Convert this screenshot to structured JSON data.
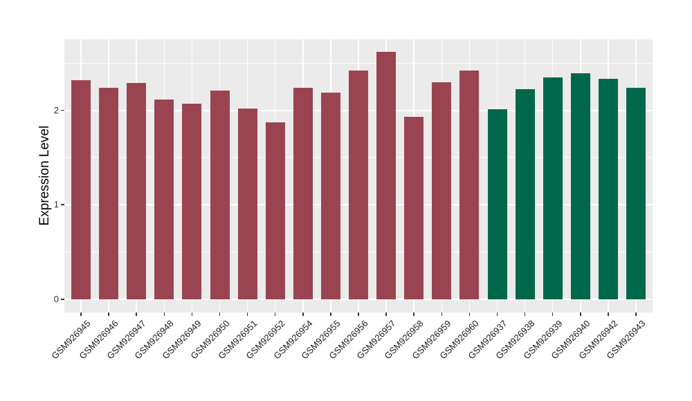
{
  "chart_data": {
    "type": "bar",
    "title": "",
    "xlabel": "",
    "ylabel": "Expression Level",
    "categories": [
      "GSM926945",
      "GSM926946",
      "GSM926947",
      "GSM926948",
      "GSM926949",
      "GSM926950",
      "GSM926951",
      "GSM926952",
      "GSM926954",
      "GSM926955",
      "GSM926956",
      "GSM926957",
      "GSM926958",
      "GSM926959",
      "GSM926960",
      "GSM926937",
      "GSM926938",
      "GSM926939",
      "GSM926940",
      "GSM926942",
      "GSM926943"
    ],
    "values": [
      2.32,
      2.24,
      2.29,
      2.11,
      2.07,
      2.21,
      2.02,
      1.87,
      2.24,
      2.19,
      2.42,
      2.62,
      1.93,
      2.3,
      2.42,
      2.01,
      2.22,
      2.35,
      2.39,
      2.33,
      2.24
    ],
    "groups": [
      "A",
      "A",
      "A",
      "A",
      "A",
      "A",
      "A",
      "A",
      "A",
      "A",
      "A",
      "A",
      "A",
      "A",
      "A",
      "B",
      "B",
      "B",
      "B",
      "B",
      "B"
    ],
    "group_colors": {
      "A": "#9B4451",
      "B": "#00684A"
    },
    "ylim": [
      -0.14,
      2.75
    ],
    "yticks": [
      0,
      1,
      2
    ],
    "ytick_labels": [
      "0",
      "1",
      "2"
    ],
    "y_minor_ticks": [
      0.5,
      1.5,
      2.5
    ],
    "legend": "none",
    "grid": "on",
    "panel_background": "#EBEBEB",
    "grid_color": "#FFFFFF"
  }
}
